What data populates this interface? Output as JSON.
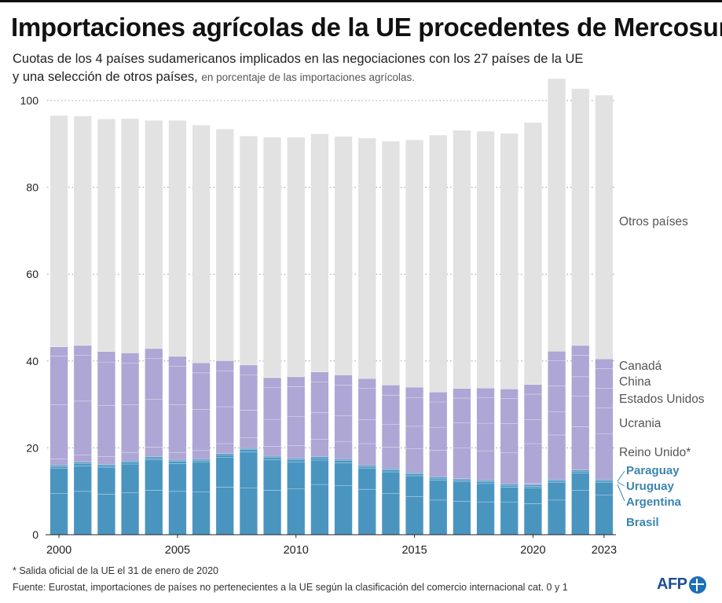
{
  "header": {
    "title": "Importaciones agrícolas de la UE procedentes de Mercosur",
    "subtitle_line1": "Cuotas de los 4 países sudamericanos implicados en las negociaciones con los 27 países de la UE",
    "subtitle_line2": "y una selección de otros países,",
    "subtitle_unit": "en porcentaje de las importaciones agrícolas."
  },
  "footer": {
    "footnote": "* Salida oficial de la UE el 31 de enero de 2020",
    "source": "Fuente: Eurostat, importaciones de países no pertenecientes a la UE según la clasificación del comercio internacional cat. 0 y 1",
    "logo_text": "AFP"
  },
  "chart_data": {
    "type": "bar",
    "stacked": true,
    "title": "Importaciones agrícolas de la UE procedentes de Mercosur",
    "ylabel": "",
    "xlabel": "",
    "ylim": [
      0,
      100
    ],
    "yticks": [
      0,
      20,
      40,
      60,
      80,
      100
    ],
    "xtick_labels": [
      "2000",
      "2005",
      "2010",
      "2015",
      "2020",
      "2023"
    ],
    "grid": "horizontal dotted",
    "categories": [
      "2000",
      "2001",
      "2002",
      "2003",
      "2004",
      "2005",
      "2006",
      "2007",
      "2008",
      "2009",
      "2010",
      "2011",
      "2012",
      "2013",
      "2014",
      "2015",
      "2016",
      "2017",
      "2018",
      "2019",
      "2020",
      "2021",
      "2022",
      "2023"
    ],
    "series": [
      {
        "name": "Brasil",
        "color": "#4a95c0",
        "values": [
          9.5,
          10.0,
          9.3,
          9.7,
          10.3,
          10.0,
          9.9,
          11.0,
          10.8,
          10.3,
          10.6,
          11.6,
          11.3,
          10.5,
          9.5,
          8.8,
          8.0,
          7.7,
          7.6,
          7.5,
          7.2,
          8.0,
          10.2,
          9.2
        ]
      },
      {
        "name": "Argentina",
        "color": "#4a95c0",
        "values": [
          5.8,
          5.9,
          6.2,
          6.6,
          7.0,
          6.4,
          6.8,
          6.9,
          8.3,
          7.0,
          6.2,
          5.6,
          5.3,
          4.8,
          5.0,
          4.8,
          4.6,
          4.5,
          4.2,
          3.5,
          3.6,
          4.0,
          4.0,
          2.8
        ]
      },
      {
        "name": "Uruguay",
        "color": "#4a95c0",
        "values": [
          0.4,
          0.5,
          0.4,
          0.4,
          0.4,
          0.5,
          0.4,
          0.5,
          0.5,
          0.5,
          0.5,
          0.5,
          0.5,
          0.4,
          0.4,
          0.4,
          0.4,
          0.4,
          0.4,
          0.4,
          0.4,
          0.4,
          0.4,
          0.4
        ]
      },
      {
        "name": "Paraguay",
        "color": "#4a95c0",
        "values": [
          0.3,
          0.3,
          0.3,
          0.3,
          0.3,
          0.3,
          0.3,
          0.3,
          0.3,
          0.3,
          0.3,
          0.3,
          0.3,
          0.3,
          0.3,
          0.3,
          0.3,
          0.3,
          0.3,
          0.3,
          0.3,
          0.3,
          0.3,
          0.3
        ]
      },
      {
        "name": "Reino Unido*",
        "color": "#aea6d4",
        "values": [
          0,
          0,
          0,
          0,
          0,
          0,
          0,
          0,
          0,
          0,
          0,
          0,
          0,
          0,
          0,
          0,
          0,
          0,
          0,
          0,
          0.4,
          10.3,
          10.0,
          10.6
        ]
      },
      {
        "name": "Ucrania",
        "color": "#aea6d4",
        "values": [
          1.5,
          1.7,
          1.8,
          2.0,
          2.2,
          1.8,
          2.0,
          2.3,
          2.5,
          2.3,
          3.0,
          4.0,
          4.0,
          5.0,
          5.0,
          5.5,
          6.2,
          7.1,
          6.8,
          7.2,
          9.1,
          5.3,
          7.0,
          6.0
        ]
      },
      {
        "name": "Estados Unidos",
        "color": "#aea6d4",
        "values": [
          12.5,
          12.4,
          11.8,
          11.0,
          11.0,
          11.0,
          9.5,
          8.5,
          6.3,
          6.2,
          6.7,
          6.2,
          6.0,
          5.5,
          5.3,
          5.2,
          5.2,
          5.8,
          6.4,
          6.7,
          5.5,
          6.0,
          4.5,
          4.5
        ]
      },
      {
        "name": "China",
        "color": "#aea6d4",
        "values": [
          11.2,
          10.5,
          10.0,
          9.6,
          9.4,
          8.8,
          8.4,
          8.3,
          8.1,
          7.3,
          6.8,
          7.0,
          7.1,
          7.2,
          6.7,
          6.6,
          5.9,
          5.7,
          5.9,
          5.8,
          5.9,
          5.8,
          5.0,
          4.5
        ]
      },
      {
        "name": "Canadá",
        "color": "#aea6d4",
        "values": [
          2.1,
          2.3,
          2.4,
          2.3,
          2.3,
          2.3,
          2.3,
          2.3,
          2.3,
          2.3,
          2.3,
          2.3,
          2.3,
          2.3,
          2.3,
          2.4,
          2.3,
          2.2,
          2.2,
          2.2,
          2.2,
          2.2,
          2.2,
          2.2
        ]
      },
      {
        "name": "Otros países",
        "color": "#e2e2e2",
        "values": [
          53.2,
          52.8,
          53.5,
          53.9,
          52.5,
          54.3,
          54.7,
          53.3,
          52.7,
          55.3,
          55.1,
          54.8,
          54.9,
          55.3,
          56.1,
          56.9,
          59.1,
          59.4,
          59.1,
          58.8,
          60.3,
          62.7,
          59.1,
          60.7
        ]
      }
    ],
    "legend": {
      "placement": "right",
      "items": [
        {
          "label": "Otros países",
          "color": "#555555",
          "bold": false
        },
        {
          "label": "Canadá",
          "color": "#555555",
          "bold": false
        },
        {
          "label": "China",
          "color": "#555555",
          "bold": false
        },
        {
          "label": "Estados Unidos",
          "color": "#555555",
          "bold": false
        },
        {
          "label": "Ucrania",
          "color": "#555555",
          "bold": false
        },
        {
          "label": "Reino Unido*",
          "color": "#555555",
          "bold": false
        },
        {
          "label": "Paraguay",
          "color": "#3b84b2",
          "bold": true
        },
        {
          "label": "Uruguay",
          "color": "#3b84b2",
          "bold": true
        },
        {
          "label": "Argentina",
          "color": "#3b84b2",
          "bold": true
        },
        {
          "label": "Brasil",
          "color": "#3b84b2",
          "bold": true
        }
      ]
    }
  }
}
